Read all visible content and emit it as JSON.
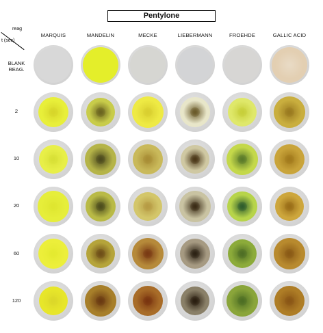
{
  "title": "Pentylone",
  "corner": {
    "reagent_label": "reag",
    "time_label": "t (sec)"
  },
  "reagents": [
    "MARQUIS",
    "MANDELIN",
    "MECKE",
    "LIEBERMANN",
    "FROEHDE",
    "GALLIC ACID"
  ],
  "rows": [
    {
      "label": "BLANK REAG.",
      "label_line1": "BLANK",
      "label_line2": "REAG."
    },
    {
      "label": "2"
    },
    {
      "label": "10"
    },
    {
      "label": "20"
    },
    {
      "label": "60"
    },
    {
      "label": "120"
    }
  ],
  "well_colors": [
    [
      {
        "stain": "#d8d8d8",
        "core": "#d8d8d8"
      },
      {
        "stain": "#e4ee2a",
        "core": "#e4ee2a"
      },
      {
        "stain": "#d6d6d2",
        "core": "#d6d6d2"
      },
      {
        "stain": "#d3d4d6",
        "core": "#d3d4d6"
      },
      {
        "stain": "#d7d6d4",
        "core": "#d7d6d4"
      },
      {
        "stain": "#e3cfb2",
        "core": "#e9dbc6"
      }
    ],
    [
      {
        "stain": "#e8ef3a",
        "core": "#d7d62a"
      },
      {
        "stain": "#c8cc4a",
        "core": "#6b6420"
      },
      {
        "stain": "#eeea44",
        "core": "#d9cf30"
      },
      {
        "stain": "#e8e6c9",
        "core": "#6a5a2a"
      },
      {
        "stain": "#dfe86a",
        "core": "#c7cf3a"
      },
      {
        "stain": "#c9ae3e",
        "core": "#9a7a20"
      }
    ],
    [
      {
        "stain": "#e8ef48",
        "core": "#d8e036"
      },
      {
        "stain": "#b5b448",
        "core": "#4c4a1e"
      },
      {
        "stain": "#c9b95a",
        "core": "#a88d35"
      },
      {
        "stain": "#cfc8a2",
        "core": "#4b3718"
      },
      {
        "stain": "#c4d84a",
        "core": "#5a7a2a"
      },
      {
        "stain": "#c9a43a",
        "core": "#a27a1c"
      }
    ],
    [
      {
        "stain": "#e6ee3a",
        "core": "#dfe630"
      },
      {
        "stain": "#b9ba46",
        "core": "#4d4d1d"
      },
      {
        "stain": "#d3c66a",
        "core": "#b69b44"
      },
      {
        "stain": "#c9c3a2",
        "core": "#3b2c16"
      },
      {
        "stain": "#b7d44a",
        "core": "#2f5d2d"
      },
      {
        "stain": "#cda63c",
        "core": "#9a6e18"
      }
    ],
    [
      {
        "stain": "#ecef3a",
        "core": "#e4ea30"
      },
      {
        "stain": "#b5a43a",
        "core": "#6e4e18"
      },
      {
        "stain": "#b68a3a",
        "core": "#7a3a14"
      },
      {
        "stain": "#a69a82",
        "core": "#2c2214"
      },
      {
        "stain": "#8cab3a",
        "core": "#4e6e25"
      },
      {
        "stain": "#b88a2e",
        "core": "#8a5a16"
      }
    ],
    [
      {
        "stain": "#e7e62a",
        "core": "#dcd829"
      },
      {
        "stain": "#a77f2a",
        "core": "#6a3a12"
      },
      {
        "stain": "#a86c28",
        "core": "#7a3510"
      },
      {
        "stain": "#8a8068",
        "core": "#2a1e10"
      },
      {
        "stain": "#8aa53a",
        "core": "#4d6e24"
      },
      {
        "stain": "#ae7d26",
        "core": "#8a5616"
      }
    ]
  ]
}
